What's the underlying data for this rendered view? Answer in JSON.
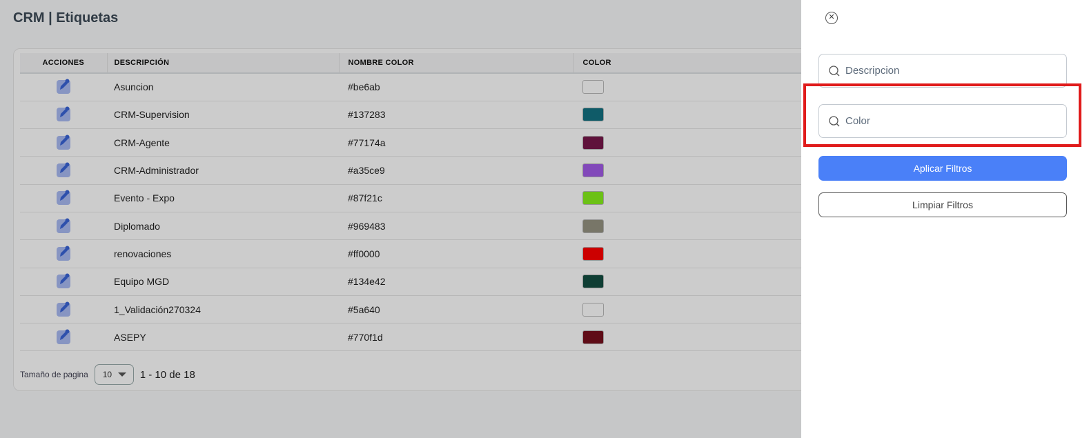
{
  "header": {
    "title": "CRM | Etiquetas"
  },
  "table": {
    "columns": [
      "ACCIONES",
      "DESCRIPCIÓN",
      "NOMBRE COLOR",
      "COLOR"
    ],
    "rows": [
      {
        "description": "Asuncion",
        "color_name": "#be6ab",
        "swatch": "#ffffff"
      },
      {
        "description": "CRM-Supervision",
        "color_name": "#137283",
        "swatch": "#137283"
      },
      {
        "description": "CRM-Agente",
        "color_name": "#77174a",
        "swatch": "#77174a"
      },
      {
        "description": "CRM-Administrador",
        "color_name": "#a35ce9",
        "swatch": "#a35ce9"
      },
      {
        "description": "Evento - Expo",
        "color_name": "#87f21c",
        "swatch": "#87f21c"
      },
      {
        "description": "Diplomado",
        "color_name": "#969483",
        "swatch": "#969483"
      },
      {
        "description": "renovaciones",
        "color_name": "#ff0000",
        "swatch": "#ff0000"
      },
      {
        "description": "Equipo MGD",
        "color_name": "#134e42",
        "swatch": "#134e42"
      },
      {
        "description": "1_Validación270324",
        "color_name": "#5a640",
        "swatch": "#ffffff"
      },
      {
        "description": "ASEPY",
        "color_name": "#770f1d",
        "swatch": "#770f1d"
      }
    ]
  },
  "pager": {
    "label": "Tamaño de pagina",
    "page_size": "10",
    "range": "1 - 10 de 18"
  },
  "drawer": {
    "description_placeholder": "Descripcion",
    "color_placeholder": "Color",
    "apply_label": "Aplicar Filtros",
    "clear_label": "Limpiar Filtros",
    "close_icon": "close-circle-icon",
    "search_icon": "search-icon"
  },
  "colors": {
    "accent": "#4a80f8",
    "highlight": "#e01b1b"
  }
}
